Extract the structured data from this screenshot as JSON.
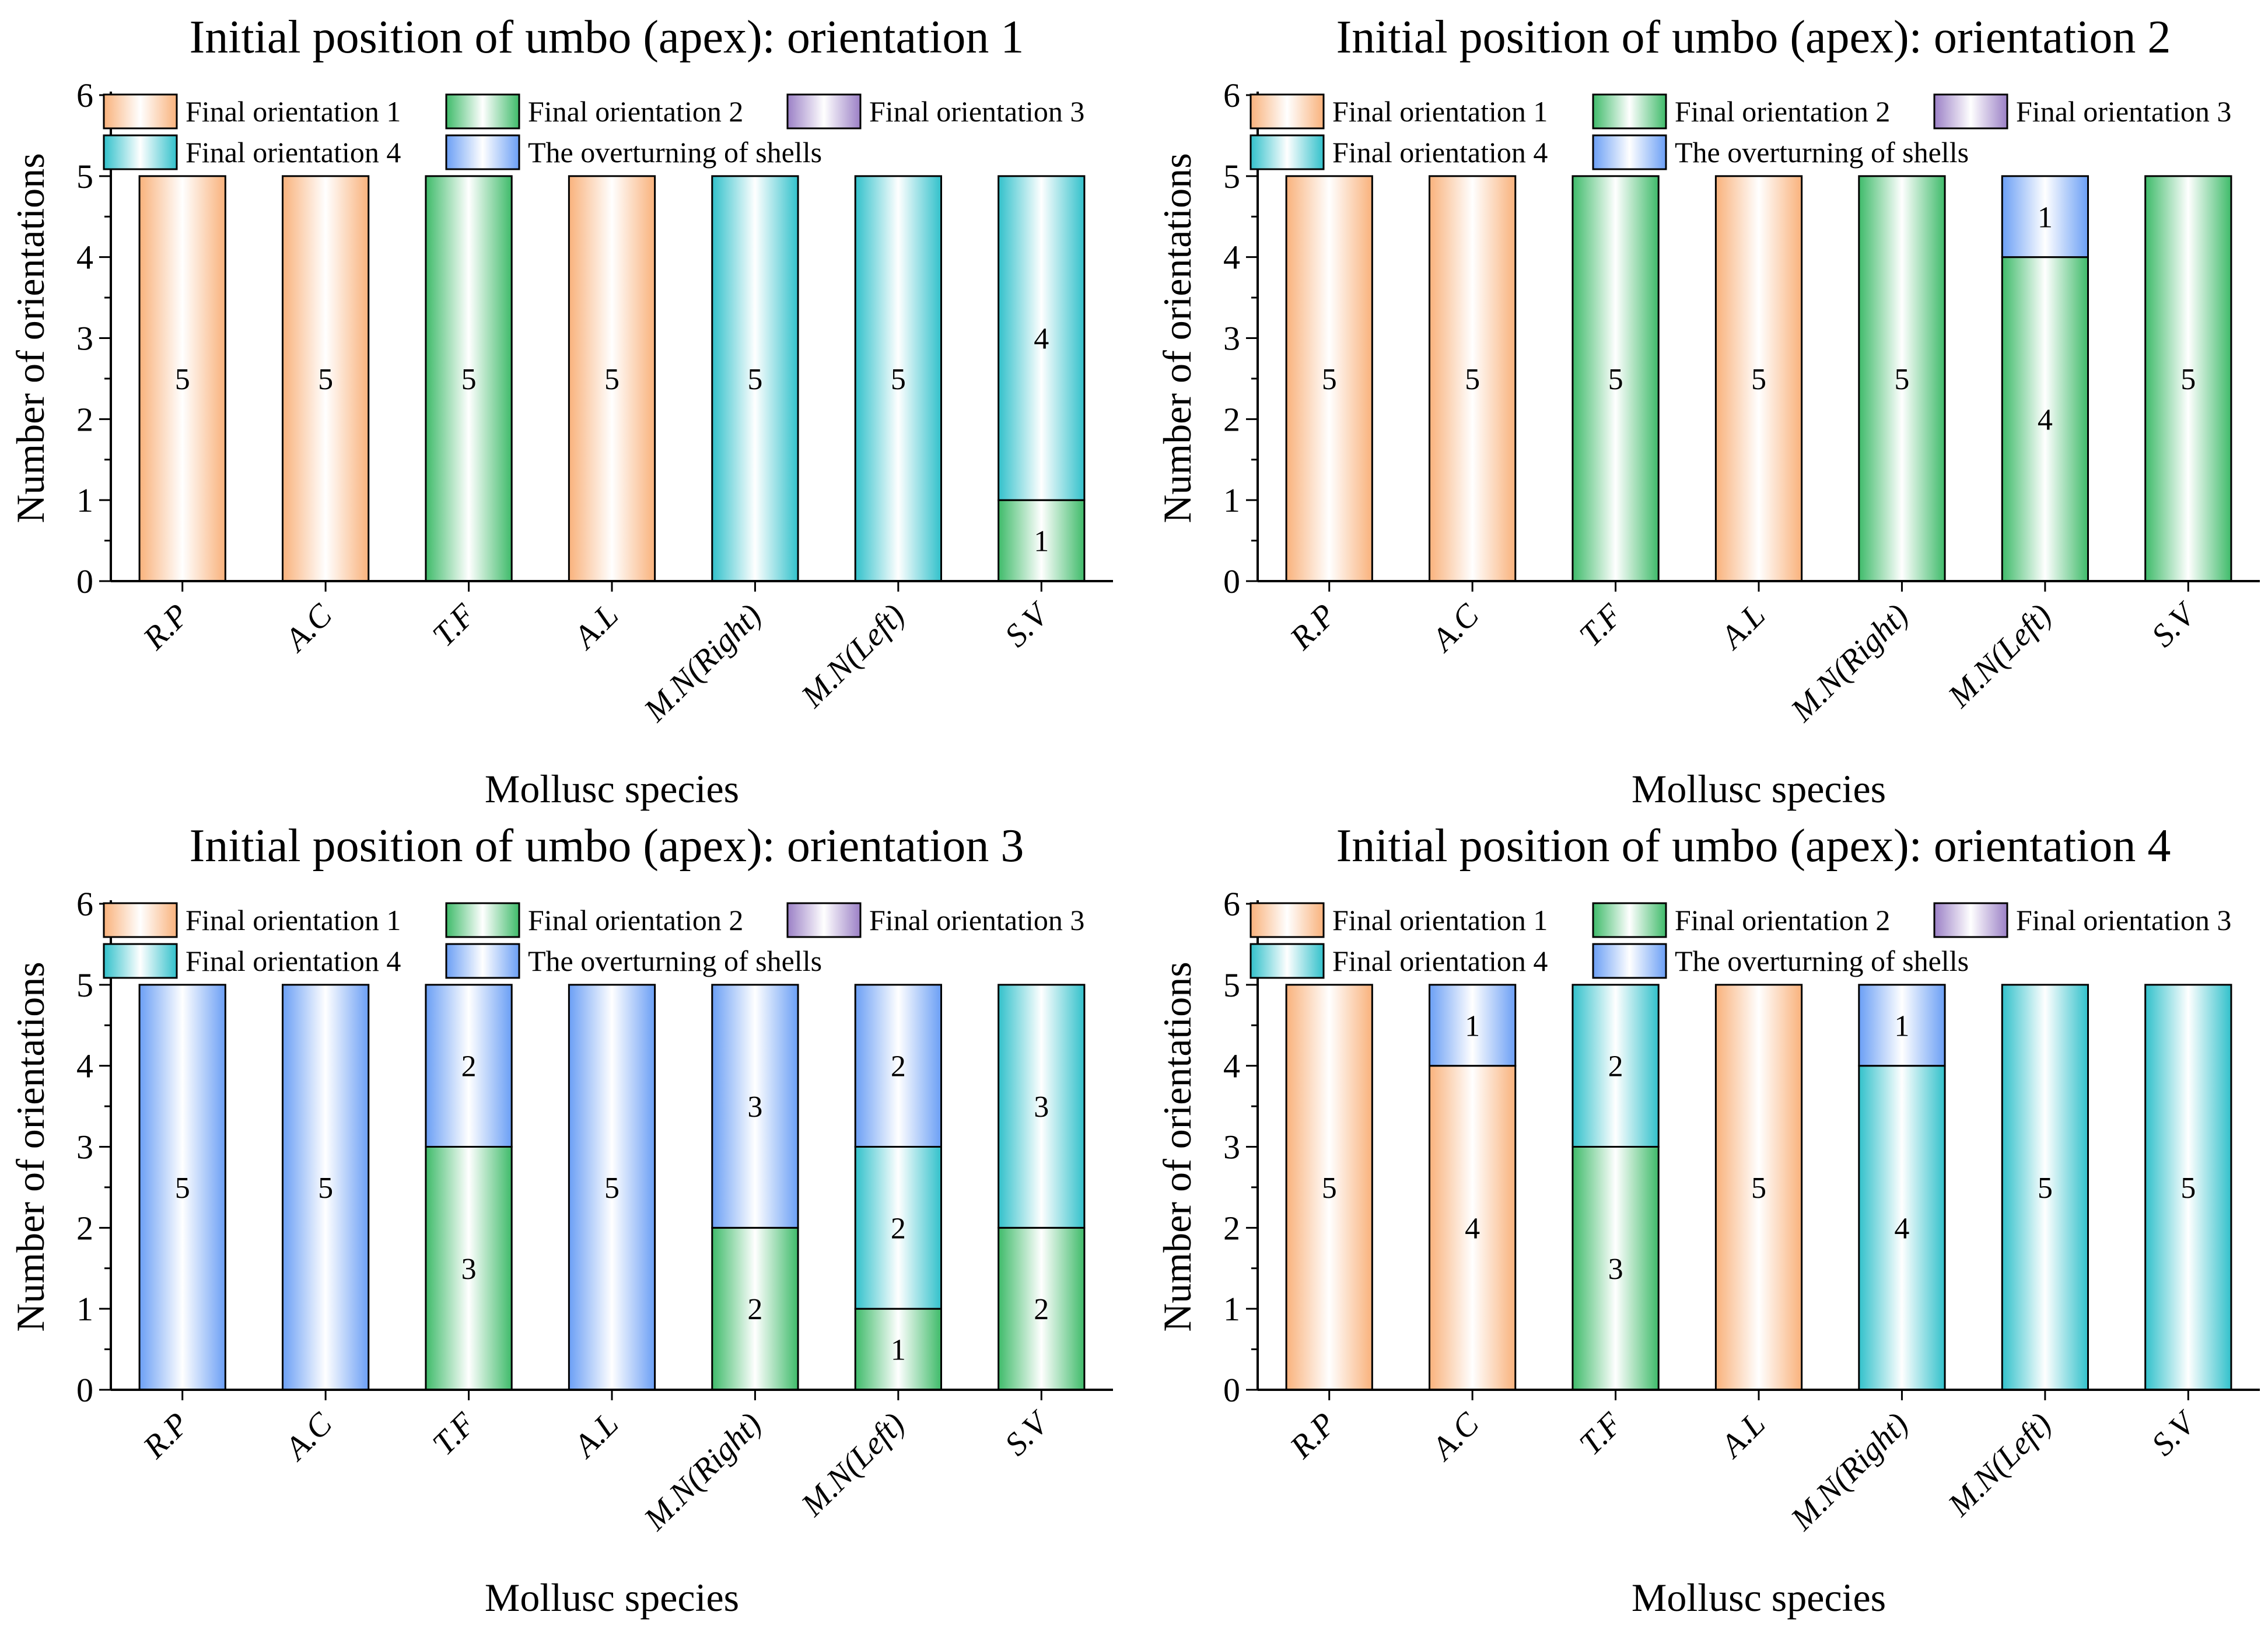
{
  "chart_data": {
    "type": "bar",
    "stacked": true,
    "colors": {
      "Final orientation 1": "#f9b27c",
      "Final orientation 2": "#3fbb6a",
      "Final orientation 3": "#9b80c6",
      "Final orientation 4": "#32c1cb",
      "The overturning of shells": "#6b9ff5"
    },
    "legend": [
      "Final orientation 1",
      "Final orientation 2",
      "Final orientation 3",
      "Final orientation 4",
      "The overturning of shells"
    ],
    "categories": [
      "R.P",
      "A.C",
      "T.F",
      "A.L",
      "M.N(Right)",
      "M.N(Left)",
      "S.V"
    ],
    "xlabel": "Mollusc species",
    "ylabel": "Number of orientations",
    "ylim": [
      0,
      6
    ],
    "yticks": [
      0,
      1,
      2,
      3,
      4,
      5,
      6
    ],
    "panels": [
      {
        "title": "Initial position of umbo (apex): orientation 1",
        "series": [
          {
            "name": "Final orientation 1",
            "values": [
              5,
              5,
              0,
              5,
              0,
              0,
              0
            ]
          },
          {
            "name": "Final orientation 2",
            "values": [
              0,
              0,
              5,
              0,
              0,
              0,
              1
            ]
          },
          {
            "name": "Final orientation 3",
            "values": [
              0,
              0,
              0,
              0,
              0,
              0,
              0
            ]
          },
          {
            "name": "Final orientation 4",
            "values": [
              0,
              0,
              0,
              0,
              5,
              5,
              4
            ]
          },
          {
            "name": "The overturning of shells",
            "values": [
              0,
              0,
              0,
              0,
              0,
              0,
              0
            ]
          }
        ]
      },
      {
        "title": "Initial position of umbo (apex): orientation 2",
        "series": [
          {
            "name": "Final orientation 1",
            "values": [
              5,
              5,
              0,
              5,
              0,
              0,
              0
            ]
          },
          {
            "name": "Final orientation 2",
            "values": [
              0,
              0,
              5,
              0,
              5,
              4,
              5
            ]
          },
          {
            "name": "Final orientation 3",
            "values": [
              0,
              0,
              0,
              0,
              0,
              0,
              0
            ]
          },
          {
            "name": "Final orientation 4",
            "values": [
              0,
              0,
              0,
              0,
              0,
              0,
              0
            ]
          },
          {
            "name": "The overturning of shells",
            "values": [
              0,
              0,
              0,
              0,
              0,
              1,
              0
            ]
          }
        ]
      },
      {
        "title": "Initial position of umbo (apex): orientation 3",
        "series": [
          {
            "name": "Final orientation 1",
            "values": [
              0,
              0,
              0,
              0,
              0,
              0,
              0
            ]
          },
          {
            "name": "Final orientation 2",
            "values": [
              0,
              0,
              3,
              0,
              2,
              1,
              2
            ]
          },
          {
            "name": "Final orientation 3",
            "values": [
              0,
              0,
              0,
              0,
              0,
              0,
              0
            ]
          },
          {
            "name": "Final orientation 4",
            "values": [
              0,
              0,
              0,
              0,
              0,
              2,
              3
            ]
          },
          {
            "name": "The overturning of shells",
            "values": [
              5,
              5,
              2,
              5,
              3,
              2,
              0
            ]
          }
        ]
      },
      {
        "title": "Initial position of umbo (apex): orientation 4",
        "series": [
          {
            "name": "Final orientation 1",
            "values": [
              5,
              4,
              0,
              5,
              0,
              0,
              0
            ]
          },
          {
            "name": "Final orientation 2",
            "values": [
              0,
              0,
              3,
              0,
              0,
              0,
              0
            ]
          },
          {
            "name": "Final orientation 3",
            "values": [
              0,
              0,
              0,
              0,
              0,
              0,
              0
            ]
          },
          {
            "name": "Final orientation 4",
            "values": [
              0,
              0,
              2,
              0,
              4,
              5,
              5
            ]
          },
          {
            "name": "The overturning of shells",
            "values": [
              0,
              1,
              0,
              0,
              1,
              0,
              0
            ]
          }
        ]
      }
    ]
  }
}
